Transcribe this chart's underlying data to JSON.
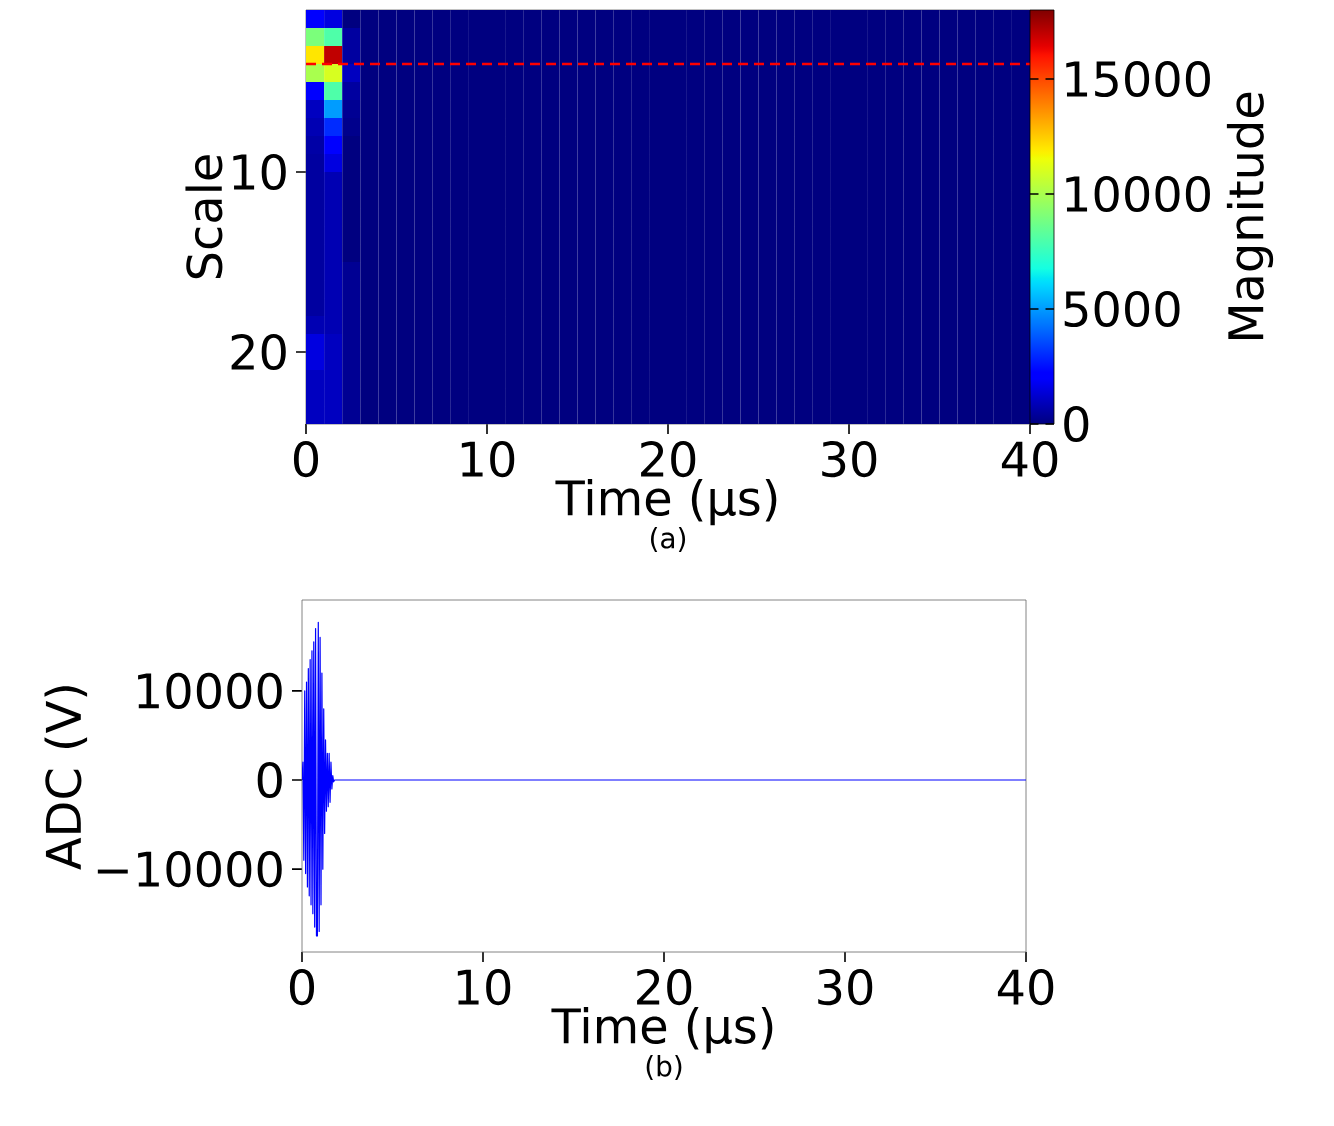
{
  "chart_data": [
    {
      "type": "heatmap",
      "xlabel": "Time (µs)",
      "ylabel": "Scale",
      "clabel": "Magnitude",
      "xlim": [
        0,
        40
      ],
      "ylim": [
        24,
        1
      ],
      "xticks": [
        0,
        10,
        20,
        30,
        40
      ],
      "yticks": [
        10,
        20
      ],
      "clim": [
        0,
        18000
      ],
      "cticks": [
        0,
        5000,
        10000,
        15000
      ],
      "ref_lines": [
        {
          "axis": "y",
          "value": 4,
          "color": "#ff0000",
          "line_style": "dashed"
        }
      ],
      "annotations": [
        "(a)"
      ],
      "cells": [
        [
          2000,
          1500,
          0,
          0,
          0,
          0,
          0,
          0,
          0,
          0,
          0,
          0,
          0,
          0,
          0,
          0,
          0,
          0,
          0,
          0,
          0,
          0,
          0,
          0,
          0,
          0,
          0,
          0,
          0,
          0,
          0,
          0,
          0,
          0,
          0,
          0,
          0,
          0,
          0,
          0
        ],
        [
          9000,
          8000,
          500,
          0,
          0,
          0,
          0,
          0,
          0,
          0,
          0,
          0,
          0,
          0,
          0,
          0,
          0,
          0,
          0,
          0,
          0,
          0,
          0,
          0,
          0,
          0,
          0,
          0,
          0,
          0,
          0,
          0,
          0,
          0,
          0,
          0,
          0,
          0,
          0,
          0
        ],
        [
          12000,
          17000,
          500,
          0,
          0,
          0,
          0,
          0,
          0,
          0,
          0,
          0,
          0,
          0,
          0,
          0,
          0,
          0,
          0,
          0,
          0,
          0,
          0,
          0,
          0,
          0,
          0,
          0,
          0,
          0,
          0,
          0,
          0,
          0,
          0,
          0,
          0,
          0,
          0,
          0
        ],
        [
          10000,
          11000,
          1000,
          0,
          0,
          0,
          0,
          0,
          0,
          0,
          0,
          0,
          0,
          0,
          0,
          0,
          0,
          0,
          0,
          0,
          0,
          0,
          0,
          0,
          0,
          0,
          0,
          0,
          0,
          0,
          0,
          0,
          0,
          0,
          0,
          0,
          0,
          0,
          0,
          0
        ],
        [
          2000,
          8000,
          500,
          0,
          0,
          0,
          0,
          0,
          0,
          0,
          0,
          0,
          0,
          0,
          0,
          0,
          0,
          0,
          0,
          0,
          0,
          0,
          0,
          0,
          0,
          0,
          0,
          0,
          0,
          0,
          0,
          0,
          0,
          0,
          0,
          0,
          0,
          0,
          0,
          0
        ],
        [
          1000,
          5000,
          300,
          0,
          0,
          0,
          0,
          0,
          0,
          0,
          0,
          0,
          0,
          0,
          0,
          0,
          0,
          0,
          0,
          0,
          0,
          0,
          0,
          0,
          0,
          0,
          0,
          0,
          0,
          0,
          0,
          0,
          0,
          0,
          0,
          0,
          0,
          0,
          0,
          0
        ],
        [
          800,
          3000,
          200,
          0,
          0,
          0,
          0,
          0,
          0,
          0,
          0,
          0,
          0,
          0,
          0,
          0,
          0,
          0,
          0,
          0,
          0,
          0,
          0,
          0,
          0,
          0,
          0,
          0,
          0,
          0,
          0,
          0,
          0,
          0,
          0,
          0,
          0,
          0,
          0,
          0
        ],
        [
          600,
          2000,
          0,
          0,
          0,
          0,
          0,
          0,
          0,
          0,
          0,
          0,
          0,
          0,
          0,
          0,
          0,
          0,
          0,
          0,
          0,
          0,
          0,
          0,
          0,
          0,
          0,
          0,
          0,
          0,
          0,
          0,
          0,
          0,
          0,
          0,
          0,
          0,
          0,
          0
        ],
        [
          500,
          1500,
          0,
          0,
          0,
          0,
          0,
          0,
          0,
          0,
          0,
          0,
          0,
          0,
          0,
          0,
          0,
          0,
          0,
          0,
          0,
          0,
          0,
          0,
          0,
          0,
          0,
          0,
          0,
          0,
          0,
          0,
          0,
          0,
          0,
          0,
          0,
          0,
          0,
          0
        ],
        [
          500,
          800,
          0,
          0,
          0,
          0,
          0,
          0,
          0,
          0,
          0,
          0,
          0,
          0,
          0,
          0,
          0,
          0,
          0,
          0,
          0,
          0,
          0,
          0,
          0,
          0,
          0,
          0,
          0,
          0,
          0,
          0,
          0,
          0,
          0,
          0,
          0,
          0,
          0,
          0
        ],
        [
          500,
          800,
          0,
          0,
          0,
          0,
          0,
          0,
          0,
          0,
          0,
          0,
          0,
          0,
          0,
          0,
          0,
          0,
          0,
          0,
          0,
          0,
          0,
          0,
          0,
          0,
          0,
          0,
          0,
          0,
          0,
          0,
          0,
          0,
          0,
          0,
          0,
          0,
          0,
          0
        ],
        [
          500,
          800,
          0,
          0,
          0,
          0,
          0,
          0,
          0,
          0,
          0,
          0,
          0,
          0,
          0,
          0,
          0,
          0,
          0,
          0,
          0,
          0,
          0,
          0,
          0,
          0,
          0,
          0,
          0,
          0,
          0,
          0,
          0,
          0,
          0,
          0,
          0,
          0,
          0,
          0
        ],
        [
          500,
          800,
          0,
          0,
          0,
          0,
          0,
          0,
          0,
          0,
          0,
          0,
          0,
          0,
          0,
          0,
          0,
          0,
          0,
          0,
          0,
          0,
          0,
          0,
          0,
          0,
          0,
          0,
          0,
          0,
          0,
          0,
          0,
          0,
          0,
          0,
          0,
          0,
          0,
          0
        ],
        [
          500,
          800,
          0,
          0,
          0,
          0,
          0,
          0,
          0,
          0,
          0,
          0,
          0,
          0,
          0,
          0,
          0,
          0,
          0,
          0,
          0,
          0,
          0,
          0,
          0,
          0,
          0,
          0,
          0,
          0,
          0,
          0,
          0,
          0,
          0,
          0,
          0,
          0,
          0,
          0
        ],
        [
          500,
          800,
          300,
          0,
          0,
          0,
          0,
          0,
          0,
          0,
          0,
          0,
          0,
          0,
          0,
          0,
          0,
          0,
          0,
          0,
          0,
          0,
          0,
          0,
          0,
          0,
          0,
          0,
          0,
          0,
          0,
          0,
          0,
          0,
          0,
          0,
          0,
          0,
          0,
          0
        ],
        [
          500,
          800,
          300,
          0,
          0,
          0,
          0,
          0,
          0,
          0,
          0,
          0,
          0,
          0,
          0,
          0,
          0,
          0,
          0,
          0,
          0,
          0,
          0,
          0,
          0,
          0,
          0,
          0,
          0,
          0,
          0,
          0,
          0,
          0,
          0,
          0,
          0,
          0,
          0,
          0
        ],
        [
          500,
          800,
          300,
          0,
          0,
          0,
          0,
          0,
          0,
          0,
          0,
          0,
          0,
          0,
          0,
          0,
          0,
          0,
          0,
          0,
          0,
          0,
          0,
          0,
          0,
          0,
          0,
          0,
          0,
          0,
          0,
          0,
          0,
          0,
          0,
          0,
          0,
          0,
          0,
          0
        ],
        [
          800,
          800,
          300,
          0,
          0,
          0,
          0,
          0,
          0,
          0,
          0,
          0,
          0,
          0,
          0,
          0,
          0,
          0,
          0,
          0,
          0,
          0,
          0,
          0,
          0,
          0,
          0,
          0,
          0,
          0,
          0,
          0,
          0,
          0,
          0,
          0,
          0,
          0,
          0,
          0
        ],
        [
          1500,
          1000,
          300,
          0,
          0,
          0,
          0,
          0,
          0,
          0,
          0,
          0,
          0,
          0,
          0,
          0,
          0,
          0,
          0,
          0,
          0,
          0,
          0,
          0,
          0,
          0,
          0,
          0,
          0,
          0,
          0,
          0,
          0,
          0,
          0,
          0,
          0,
          0,
          0,
          0
        ],
        [
          1500,
          1000,
          300,
          0,
          0,
          0,
          0,
          0,
          0,
          0,
          0,
          0,
          0,
          0,
          0,
          0,
          0,
          0,
          0,
          0,
          0,
          0,
          0,
          0,
          0,
          0,
          0,
          0,
          0,
          0,
          0,
          0,
          0,
          0,
          0,
          0,
          0,
          0,
          0,
          0
        ],
        [
          1000,
          1000,
          300,
          0,
          0,
          0,
          0,
          0,
          0,
          0,
          0,
          0,
          0,
          0,
          0,
          0,
          0,
          0,
          0,
          0,
          0,
          0,
          0,
          0,
          0,
          0,
          0,
          0,
          0,
          0,
          0,
          0,
          0,
          0,
          0,
          0,
          0,
          0,
          0,
          0
        ],
        [
          1000,
          1000,
          300,
          0,
          0,
          0,
          0,
          0,
          0,
          0,
          0,
          0,
          0,
          0,
          0,
          0,
          0,
          0,
          0,
          0,
          0,
          0,
          0,
          0,
          0,
          0,
          0,
          0,
          0,
          0,
          0,
          0,
          0,
          0,
          0,
          0,
          0,
          0,
          0,
          0
        ],
        [
          1000,
          1000,
          300,
          0,
          0,
          0,
          0,
          0,
          0,
          0,
          0,
          0,
          0,
          0,
          0,
          0,
          0,
          0,
          0,
          0,
          0,
          0,
          0,
          0,
          0,
          0,
          0,
          0,
          0,
          0,
          0,
          0,
          0,
          0,
          0,
          0,
          0,
          0,
          0,
          0
        ]
      ]
    },
    {
      "type": "line",
      "xlabel": "Time (µs)",
      "ylabel": "ADC (V)",
      "xlim": [
        0,
        40
      ],
      "ylim": [
        -19300,
        20200
      ],
      "xticks": [
        0,
        10,
        20,
        30,
        40
      ],
      "yticks": [
        {
          "value": -10000,
          "label": "−10000"
        },
        0,
        10000
      ],
      "annotations": [
        "(b)"
      ],
      "x": [
        0,
        0.05,
        0.1,
        0.15,
        0.2,
        0.25,
        0.3,
        0.35,
        0.4,
        0.45,
        0.5,
        0.55,
        0.6,
        0.65,
        0.7,
        0.75,
        0.8,
        0.85,
        0.9,
        0.95,
        1.0,
        1.05,
        1.1,
        1.15,
        1.2,
        1.25,
        1.3,
        1.35,
        1.4,
        1.45,
        1.5,
        1.55,
        1.6,
        1.65,
        1.7,
        1.75,
        1.8,
        40
      ],
      "series": [
        {
          "color": "#0000ff",
          "values": [
            0,
            2000,
            -9000,
            10000,
            -10500,
            11000,
            -12000,
            12500,
            -13000,
            13500,
            -14000,
            14500,
            -15000,
            15500,
            -16500,
            17000,
            -17500,
            -17500,
            17700,
            -17000,
            16000,
            -14000,
            12000,
            -10000,
            8000,
            -6000,
            4500,
            -3500,
            3000,
            -3000,
            3000,
            -2500,
            2000,
            -1000,
            500,
            -200,
            0,
            0
          ]
        }
      ]
    }
  ]
}
